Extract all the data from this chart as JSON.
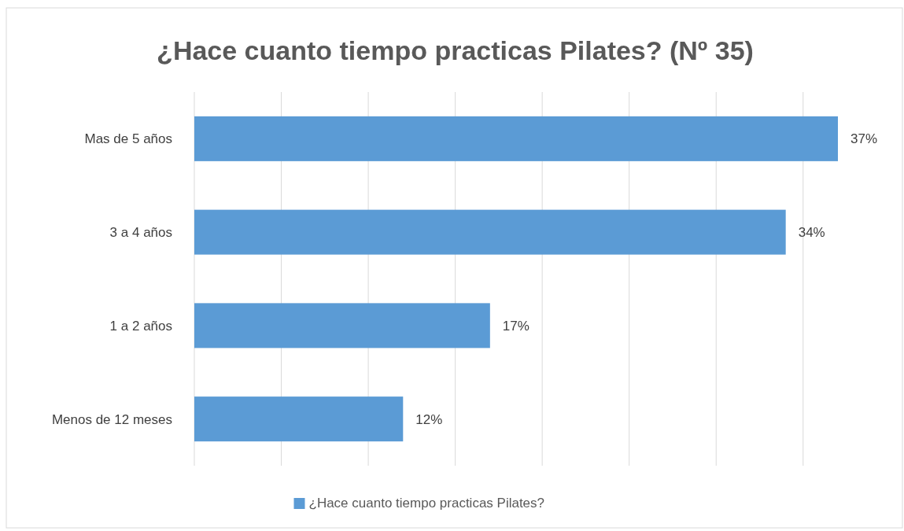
{
  "chart_data": {
    "type": "bar",
    "orientation": "horizontal",
    "title": "¿Hace cuanto tiempo practicas Pilates? (Nº 35)",
    "categories": [
      "Mas de 5 años",
      "3 a 4 años",
      "1 a 2 años",
      "Menos de 12 meses"
    ],
    "series": [
      {
        "name": "¿Hace cuanto tiempo practicas Pilates?",
        "color": "#5b9bd5",
        "values": [
          37,
          34,
          17,
          12
        ],
        "value_labels": [
          "37%",
          "34%",
          "17%",
          "12%"
        ]
      }
    ],
    "tick_labels": "y",
    "grid": "x",
    "legend": "bottom"
  }
}
